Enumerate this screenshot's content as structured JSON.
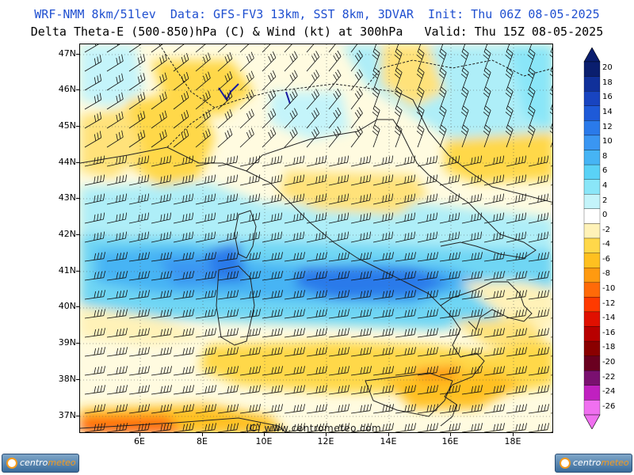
{
  "header": {
    "line1": "WRF-NMM 8km/51lev  Data: GFS-FV3 13km, SST 8km, 3DVAR  Init: Thu 06Z 08-05-2025",
    "line2": "Delta Theta-E (500-850)hPa (C) & Wind (kt) at 300hPa   Valid: Thu 15Z 08-05-2025"
  },
  "map": {
    "latitude_labels": [
      "47N",
      "46N",
      "45N",
      "44N",
      "43N",
      "42N",
      "41N",
      "40N",
      "39N",
      "38N",
      "37N"
    ],
    "longitude_labels": [
      "6E",
      "8E",
      "10E",
      "12E",
      "14E",
      "16E",
      "18E"
    ],
    "copyright": "(C) www.centrometeo.com"
  },
  "colorbar": {
    "labels": [
      "20",
      "18",
      "16",
      "14",
      "12",
      "10",
      "8",
      "6",
      "4",
      "2",
      "0",
      "-2",
      "-4",
      "-6",
      "-8",
      "-10",
      "-12",
      "-14",
      "-16",
      "-18",
      "-20",
      "-22",
      "-24",
      "-26"
    ],
    "colors": [
      "#0a1e6e",
      "#10309a",
      "#1844c0",
      "#1e5ad8",
      "#2a7aea",
      "#3a96f2",
      "#46b4f4",
      "#5ad2f6",
      "#8ae6f8",
      "#c4f4fa",
      "#ffffff",
      "#fff2b8",
      "#ffd84a",
      "#ffc020",
      "#ff9a10",
      "#ff6a08",
      "#ff3a00",
      "#e01000",
      "#b80000",
      "#8a0000",
      "#6a0020",
      "#7a1070",
      "#c020c0",
      "#f070f0"
    ]
  },
  "logos": {
    "left_text_a": "centro",
    "left_text_b": "meteo",
    "right_text_a": "centro",
    "right_text_b": "meteo"
  }
}
